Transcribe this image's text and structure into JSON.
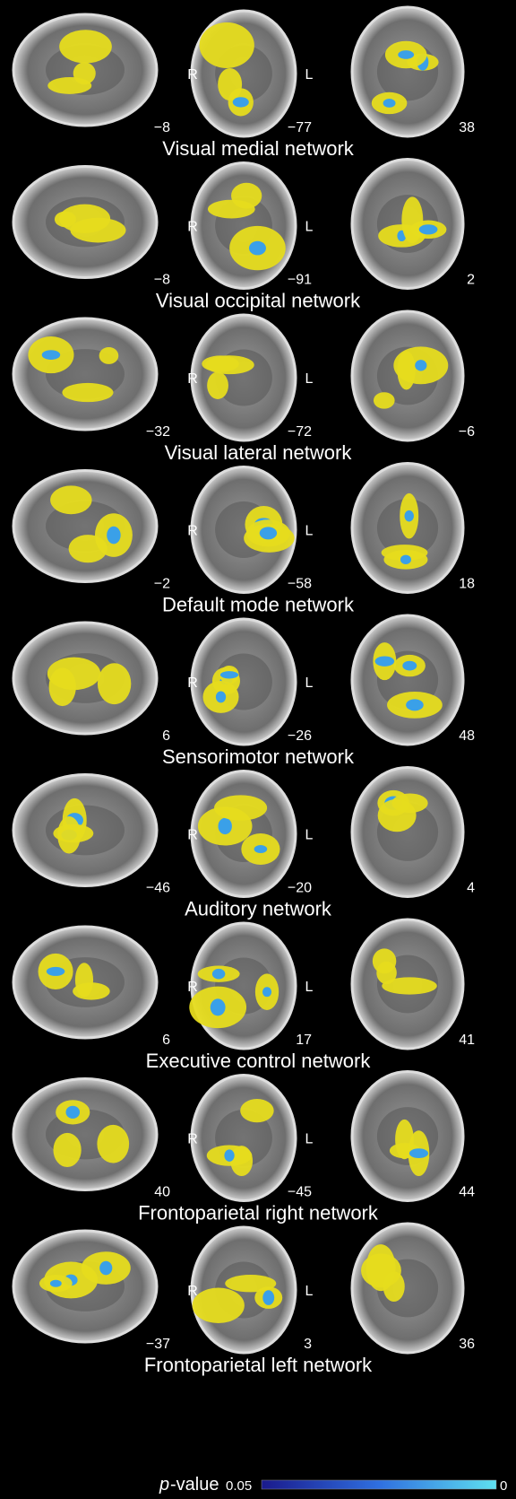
{
  "panels": [
    {
      "title": "Visual medial network",
      "sagittal": "−8",
      "coronal": "−77",
      "axial": "38"
    },
    {
      "title": "Visual occipital network",
      "sagittal": "−8",
      "coronal": "−91",
      "axial": "2"
    },
    {
      "title": "Visual lateral network",
      "sagittal": "−32",
      "coronal": "−72",
      "axial": "−6"
    },
    {
      "title": "Default mode network",
      "sagittal": "−2",
      "coronal": "−58",
      "axial": "18"
    },
    {
      "title": "Sensorimotor network",
      "sagittal": "6",
      "coronal": "−26",
      "axial": "48"
    },
    {
      "title": "Auditory network",
      "sagittal": "−46",
      "coronal": "−20",
      "axial": "4"
    },
    {
      "title": "Executive control network",
      "sagittal": "6",
      "coronal": "17",
      "axial": "41"
    },
    {
      "title": "Frontoparietal right network",
      "sagittal": "40",
      "coronal": "−45",
      "axial": "44"
    },
    {
      "title": "Frontoparietal left network",
      "sagittal": "−37",
      "coronal": "3",
      "axial": "36"
    }
  ],
  "orientation": {
    "right": "R",
    "left": "L"
  },
  "legend": {
    "italic": "p",
    "label": "-value",
    "min": "0.05",
    "max": "0"
  }
}
